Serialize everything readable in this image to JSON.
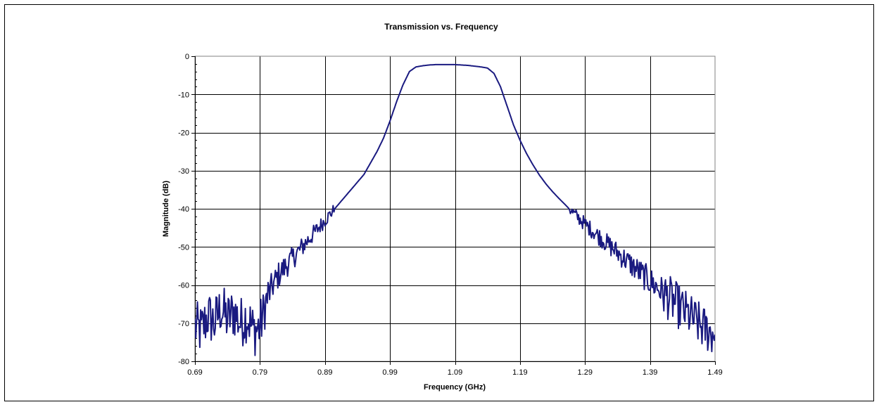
{
  "chart_data": {
    "type": "line",
    "title": "Transmission vs. Frequency",
    "xlabel": "Frequency (GHz)",
    "ylabel": "Magnitude (dB)",
    "xlim": [
      0.69,
      1.49
    ],
    "ylim": [
      -80,
      0
    ],
    "x_ticks": [
      "0.69",
      "0.79",
      "0.89",
      "0.99",
      "1.09",
      "1.19",
      "1.29",
      "1.39",
      "1.49"
    ],
    "y_ticks": [
      "0",
      "-10",
      "-20",
      "-30",
      "-40",
      "-50",
      "-60",
      "-70",
      "-80"
    ],
    "grid": true,
    "legend": "none",
    "series": [
      {
        "color": "#1a1a80",
        "x": [
          0.69,
          0.7,
          0.71,
          0.72,
          0.73,
          0.74,
          0.75,
          0.76,
          0.77,
          0.78,
          0.79,
          0.8,
          0.81,
          0.82,
          0.83,
          0.84,
          0.85,
          0.86,
          0.87,
          0.88,
          0.89,
          0.9,
          0.91,
          0.92,
          0.93,
          0.94,
          0.95,
          0.96,
          0.97,
          0.98,
          0.99,
          1.0,
          1.01,
          1.02,
          1.03,
          1.04,
          1.05,
          1.06,
          1.07,
          1.08,
          1.09,
          1.1,
          1.11,
          1.12,
          1.13,
          1.14,
          1.15,
          1.16,
          1.17,
          1.18,
          1.19,
          1.2,
          1.21,
          1.22,
          1.23,
          1.24,
          1.25,
          1.26,
          1.27,
          1.28,
          1.29,
          1.3,
          1.31,
          1.32,
          1.33,
          1.34,
          1.35,
          1.36,
          1.37,
          1.38,
          1.39,
          1.4,
          1.41,
          1.42,
          1.43,
          1.44,
          1.45,
          1.46,
          1.47,
          1.48,
          1.49
        ],
        "values": [
          -71,
          -72,
          -68,
          -70,
          -66,
          -69,
          -67,
          -70,
          -68,
          -72,
          -71,
          -64,
          -60,
          -57,
          -55,
          -53,
          -51,
          -49,
          -47,
          -45,
          -43,
          -41,
          -39,
          -37,
          -35,
          -33,
          -31,
          -28,
          -25,
          -21.5,
          -17,
          -12,
          -7.5,
          -4,
          -2.8,
          -2.5,
          -2.3,
          -2.2,
          -2.2,
          -2.2,
          -2.2,
          -2.3,
          -2.4,
          -2.6,
          -2.8,
          -3.1,
          -4.5,
          -8,
          -13,
          -18,
          -22,
          -25.5,
          -28.5,
          -31.2,
          -33.5,
          -35.5,
          -37.3,
          -39,
          -40.8,
          -42.4,
          -44,
          -45.5,
          -47,
          -48.5,
          -50,
          -51.5,
          -53,
          -54.5,
          -56,
          -57.5,
          -59,
          -60.5,
          -62,
          -63.5,
          -65,
          -66.5,
          -68,
          -69.5,
          -71,
          -72,
          -73
        ]
      }
    ]
  }
}
